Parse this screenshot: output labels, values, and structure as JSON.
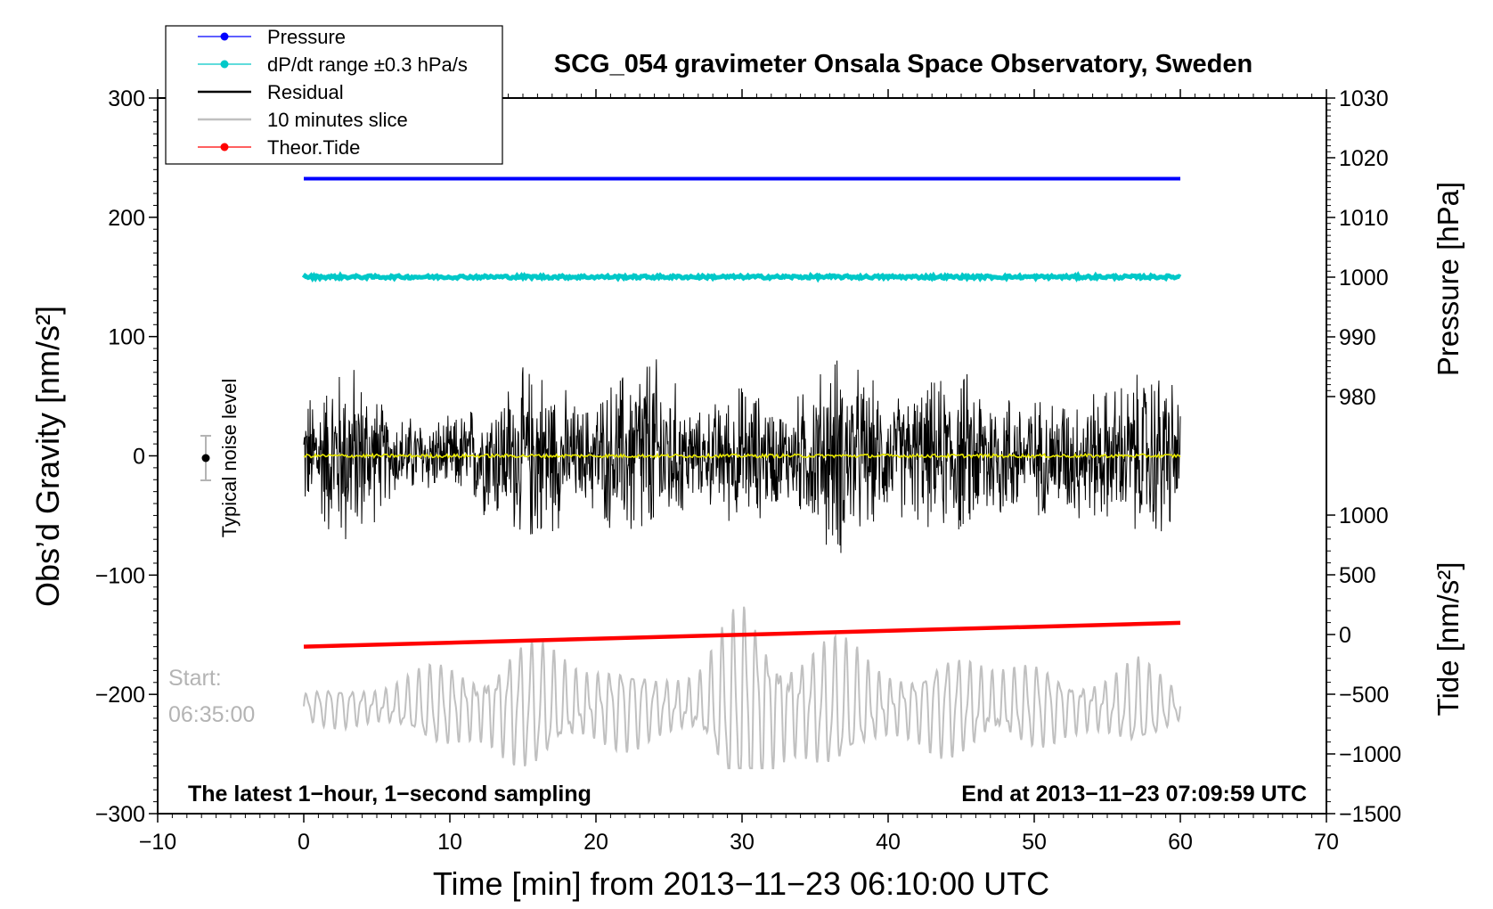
{
  "chart_data": {
    "type": "line",
    "title": "SCG_054 gravimeter Onsala Space Observatory, Sweden",
    "xlabel": "Time [min] from 2013−11−23 06:10:00 UTC",
    "ylabel_left": "Obs’d Gravity [nm/s²]",
    "ylabel_right_top": "Pressure [hPa]",
    "ylabel_right_bottom": "Tide [nm/s²]",
    "xlim": [
      -10,
      70
    ],
    "ylim": [
      -300,
      300
    ],
    "pressure_axis_range": [
      980,
      1030
    ],
    "tide_axis_range": [
      -1500,
      1000
    ],
    "x_ticks": [
      {
        "value": -10,
        "label": "−10"
      },
      {
        "value": 0,
        "label": "0"
      },
      {
        "value": 10,
        "label": "10"
      },
      {
        "value": 20,
        "label": "20"
      },
      {
        "value": 30,
        "label": "30"
      },
      {
        "value": 40,
        "label": "40"
      },
      {
        "value": 50,
        "label": "50"
      },
      {
        "value": 60,
        "label": "60"
      },
      {
        "value": 70,
        "label": "70"
      }
    ],
    "y_ticks_left": [
      {
        "value": 300,
        "label": "300"
      },
      {
        "value": 200,
        "label": "200"
      },
      {
        "value": 100,
        "label": "100"
      },
      {
        "value": 0,
        "label": "0"
      },
      {
        "value": -100,
        "label": "−100"
      },
      {
        "value": -200,
        "label": "−200"
      },
      {
        "value": -300,
        "label": "−300"
      }
    ],
    "pressure_ticks": [
      {
        "value": 1030,
        "label": "1030"
      },
      {
        "value": 1020,
        "label": "1020"
      },
      {
        "value": 1010,
        "label": "1010"
      },
      {
        "value": 1000,
        "label": "1000"
      },
      {
        "value": 990,
        "label": "990"
      },
      {
        "value": 980,
        "label": "980"
      }
    ],
    "tide_ticks": [
      {
        "value": 1000,
        "label": "1000"
      },
      {
        "value": 500,
        "label": "500"
      },
      {
        "value": 0,
        "label": "0"
      },
      {
        "value": -500,
        "label": "−500"
      },
      {
        "value": -1000,
        "label": "−1000"
      },
      {
        "value": -1500,
        "label": "−1500"
      }
    ],
    "legend": [
      {
        "name": "Pressure",
        "color": "#0000ff",
        "marker": true
      },
      {
        "name": "dP/dt range ±0.3 hPa/s",
        "color": "#00c8c8",
        "marker": true
      },
      {
        "name": "Residual",
        "color": "#000000",
        "marker": false
      },
      {
        "name": "10 minutes slice",
        "color": "#c0c0c0",
        "marker": false
      },
      {
        "name": "Theor.Tide",
        "color": "#ff0000",
        "marker": true
      }
    ],
    "series": [
      {
        "name": "Pressure",
        "color": "#0000ff",
        "x_range": [
          0,
          60
        ],
        "start": 1016.5,
        "end": 1016.5
      },
      {
        "name": "dP/dt range ±0.3 hPa/s",
        "color": "#00c8c8",
        "x_range": [
          0,
          60
        ],
        "start": 150,
        "end": 150,
        "noise": 2
      },
      {
        "name": "Theor.Tide",
        "color": "#ff0000",
        "x_range": [
          0,
          60
        ],
        "start": -160,
        "end": -140
      },
      {
        "name": "Residual",
        "color": "#000000",
        "x_range": [
          0,
          60
        ],
        "range": [
          -110,
          110
        ],
        "envelope": [
          {
            "t": 0,
            "a": 55
          },
          {
            "t": 3,
            "a": 95
          },
          {
            "t": 6,
            "a": 40
          },
          {
            "t": 10,
            "a": 35
          },
          {
            "t": 16,
            "a": 90
          },
          {
            "t": 19,
            "a": 45
          },
          {
            "t": 23.5,
            "a": 105
          },
          {
            "t": 27,
            "a": 40
          },
          {
            "t": 30,
            "a": 70
          },
          {
            "t": 33,
            "a": 45
          },
          {
            "t": 36.5,
            "a": 100
          },
          {
            "t": 40,
            "a": 55
          },
          {
            "t": 45,
            "a": 80
          },
          {
            "t": 50,
            "a": 55
          },
          {
            "t": 55,
            "a": 65
          },
          {
            "t": 59,
            "a": 90
          },
          {
            "t": 60,
            "a": 50
          }
        ]
      },
      {
        "name": "Residual mean",
        "color": "#e6e600",
        "x_range": [
          0,
          60
        ],
        "start": 0,
        "end": 0,
        "noise": 1.5
      },
      {
        "name": "10 minutes slice",
        "color": "#c0c0c0",
        "x_range": [
          0,
          60
        ],
        "center": -210,
        "range": [
          -262,
          -98
        ],
        "envelope": [
          {
            "t": 0,
            "a": 12
          },
          {
            "t": 5,
            "a": 20
          },
          {
            "t": 11,
            "a": 35
          },
          {
            "t": 14,
            "a": 50
          },
          {
            "t": 20,
            "a": 40
          },
          {
            "t": 24,
            "a": 25
          },
          {
            "t": 27,
            "a": 35
          },
          {
            "t": 30,
            "a": 80
          },
          {
            "t": 34,
            "a": 55
          },
          {
            "t": 38,
            "a": 45
          },
          {
            "t": 42,
            "a": 30
          },
          {
            "t": 46,
            "a": 45
          },
          {
            "t": 52,
            "a": 25
          },
          {
            "t": 57,
            "a": 35
          },
          {
            "t": 60,
            "a": 15
          }
        ]
      }
    ],
    "noise_level": {
      "label": "Typical noise level",
      "x": -7,
      "y": 0,
      "error": 20
    },
    "annotations": {
      "start_label": "Start:",
      "start_time": "06:35:00",
      "bottom_left": "The latest 1−hour, 1−second sampling",
      "bottom_right": "End at 2013−11−23 07:09:59 UTC"
    }
  }
}
